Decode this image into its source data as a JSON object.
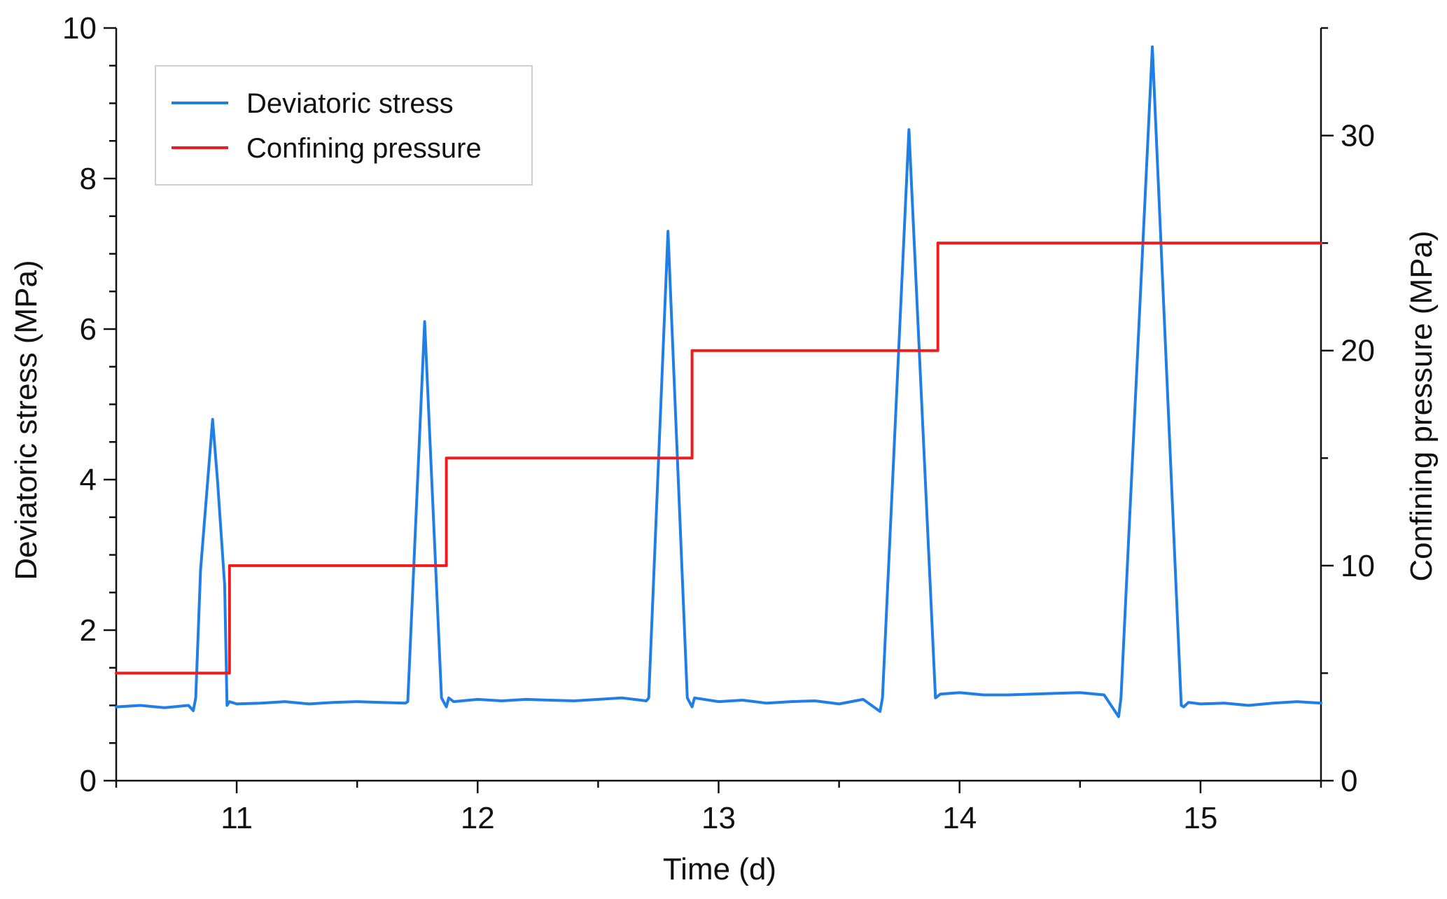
{
  "chart_data": {
    "type": "line",
    "title": "",
    "xlabel": "Time  (d)",
    "ylabel": "Deviatoric stress  (MPa)",
    "y2label": "Confining pressure  (MPa)",
    "xlim": [
      10.5,
      15.5
    ],
    "ylim": [
      0,
      10
    ],
    "y2lim": [
      0,
      35
    ],
    "x_ticks": [
      11,
      12,
      13,
      14,
      15
    ],
    "y_ticks": [
      0,
      2,
      4,
      6,
      8,
      10
    ],
    "y2_ticks": [
      0,
      10,
      20,
      30
    ],
    "grid": false,
    "legend_position": "top-left",
    "series": [
      {
        "name": "Deviatoric stress",
        "axis": "left",
        "color": "#1f7fe6",
        "x": [
          10.5,
          10.6,
          10.7,
          10.8,
          10.82,
          10.83,
          10.85,
          10.9,
          10.92,
          10.95,
          10.96,
          10.97,
          11.0,
          11.1,
          11.2,
          11.3,
          11.4,
          11.5,
          11.6,
          11.7,
          11.71,
          11.78,
          11.85,
          11.87,
          11.88,
          11.9,
          12.0,
          12.1,
          12.2,
          12.3,
          12.4,
          12.5,
          12.6,
          12.7,
          12.71,
          12.79,
          12.87,
          12.89,
          12.9,
          13.0,
          13.1,
          13.2,
          13.3,
          13.4,
          13.5,
          13.6,
          13.67,
          13.68,
          13.79,
          13.9,
          13.92,
          14.0,
          14.1,
          14.2,
          14.3,
          14.4,
          14.5,
          14.6,
          14.66,
          14.67,
          14.8,
          14.92,
          14.93,
          14.95,
          15.0,
          15.1,
          15.2,
          15.3,
          15.4,
          15.5
        ],
        "values": [
          0.98,
          1.0,
          0.97,
          1.0,
          0.93,
          1.1,
          2.8,
          4.8,
          4.0,
          2.6,
          1.0,
          1.05,
          1.02,
          1.03,
          1.05,
          1.02,
          1.04,
          1.05,
          1.04,
          1.03,
          1.05,
          6.1,
          1.1,
          0.98,
          1.1,
          1.05,
          1.08,
          1.06,
          1.08,
          1.07,
          1.06,
          1.08,
          1.1,
          1.06,
          1.1,
          7.3,
          1.1,
          0.98,
          1.1,
          1.05,
          1.07,
          1.03,
          1.05,
          1.06,
          1.02,
          1.08,
          0.92,
          1.1,
          8.65,
          1.1,
          1.15,
          1.17,
          1.14,
          1.14,
          1.15,
          1.16,
          1.17,
          1.14,
          0.85,
          1.1,
          9.75,
          1.0,
          0.98,
          1.04,
          1.02,
          1.03,
          1.0,
          1.03,
          1.05,
          1.03
        ]
      },
      {
        "name": "Confining pressure",
        "axis": "right",
        "color": "#ee1c1c",
        "x": [
          10.5,
          10.97,
          10.97,
          11.87,
          11.87,
          12.89,
          12.89,
          13.91,
          13.91,
          15.5
        ],
        "values": [
          5,
          5,
          10,
          10,
          15,
          15,
          20,
          20,
          25,
          25
        ]
      }
    ]
  }
}
